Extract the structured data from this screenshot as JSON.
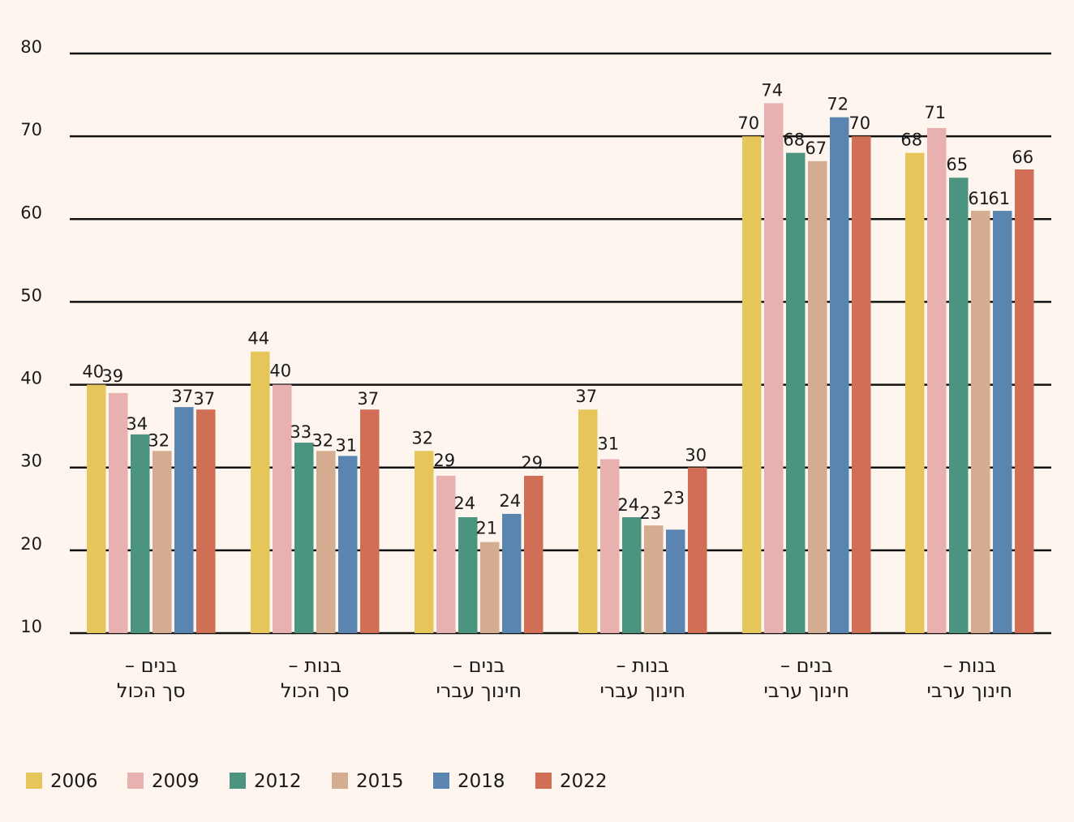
{
  "chart_data": {
    "type": "bar",
    "title": "",
    "xlabel": "",
    "ylabel": "",
    "ylim": [
      10,
      80
    ],
    "yticks": [
      10,
      20,
      30,
      40,
      50,
      60,
      70,
      80
    ],
    "grid": true,
    "legend_position": "bottom-left",
    "categories": [
      [
        "בנים –",
        "סך הכול"
      ],
      [
        "בנות –",
        "סך הכול"
      ],
      [
        "בנים –",
        "חינוך עברי"
      ],
      [
        "בנות –",
        "חינוך עברי"
      ],
      [
        "בנים –",
        "חינוך ערבי"
      ],
      [
        "בנות –",
        "חינוך ערבי"
      ]
    ],
    "series": [
      {
        "name": "2006",
        "color": "#e6c65a",
        "values": [
          40,
          44,
          32,
          37,
          70,
          68
        ]
      },
      {
        "name": "2009",
        "color": "#e8b1b0",
        "values": [
          39,
          40,
          29,
          31,
          74,
          71
        ]
      },
      {
        "name": "2012",
        "color": "#4b9480",
        "values": [
          34,
          33,
          24,
          24,
          68,
          65
        ]
      },
      {
        "name": "2015",
        "color": "#d4ac8f",
        "values": [
          32,
          32,
          21,
          23,
          67,
          61
        ]
      },
      {
        "name": "2018",
        "color": "#5985b0",
        "values": [
          37,
          31,
          24,
          23,
          72,
          61
        ]
      },
      {
        "name": "2022",
        "color": "#d06e56",
        "values": [
          37,
          37,
          29,
          30,
          70,
          66
        ]
      }
    ],
    "bar_values": [
      [
        40,
        39,
        34,
        32,
        37.3,
        37
      ],
      [
        44,
        40,
        33,
        32,
        31.4,
        37
      ],
      [
        32,
        29,
        24,
        21,
        24.4,
        29
      ],
      [
        37,
        31,
        24,
        23,
        22.5,
        30
      ],
      [
        70,
        74,
        68,
        67,
        72.3,
        70
      ],
      [
        68,
        71,
        65,
        61,
        61,
        66
      ]
    ]
  }
}
